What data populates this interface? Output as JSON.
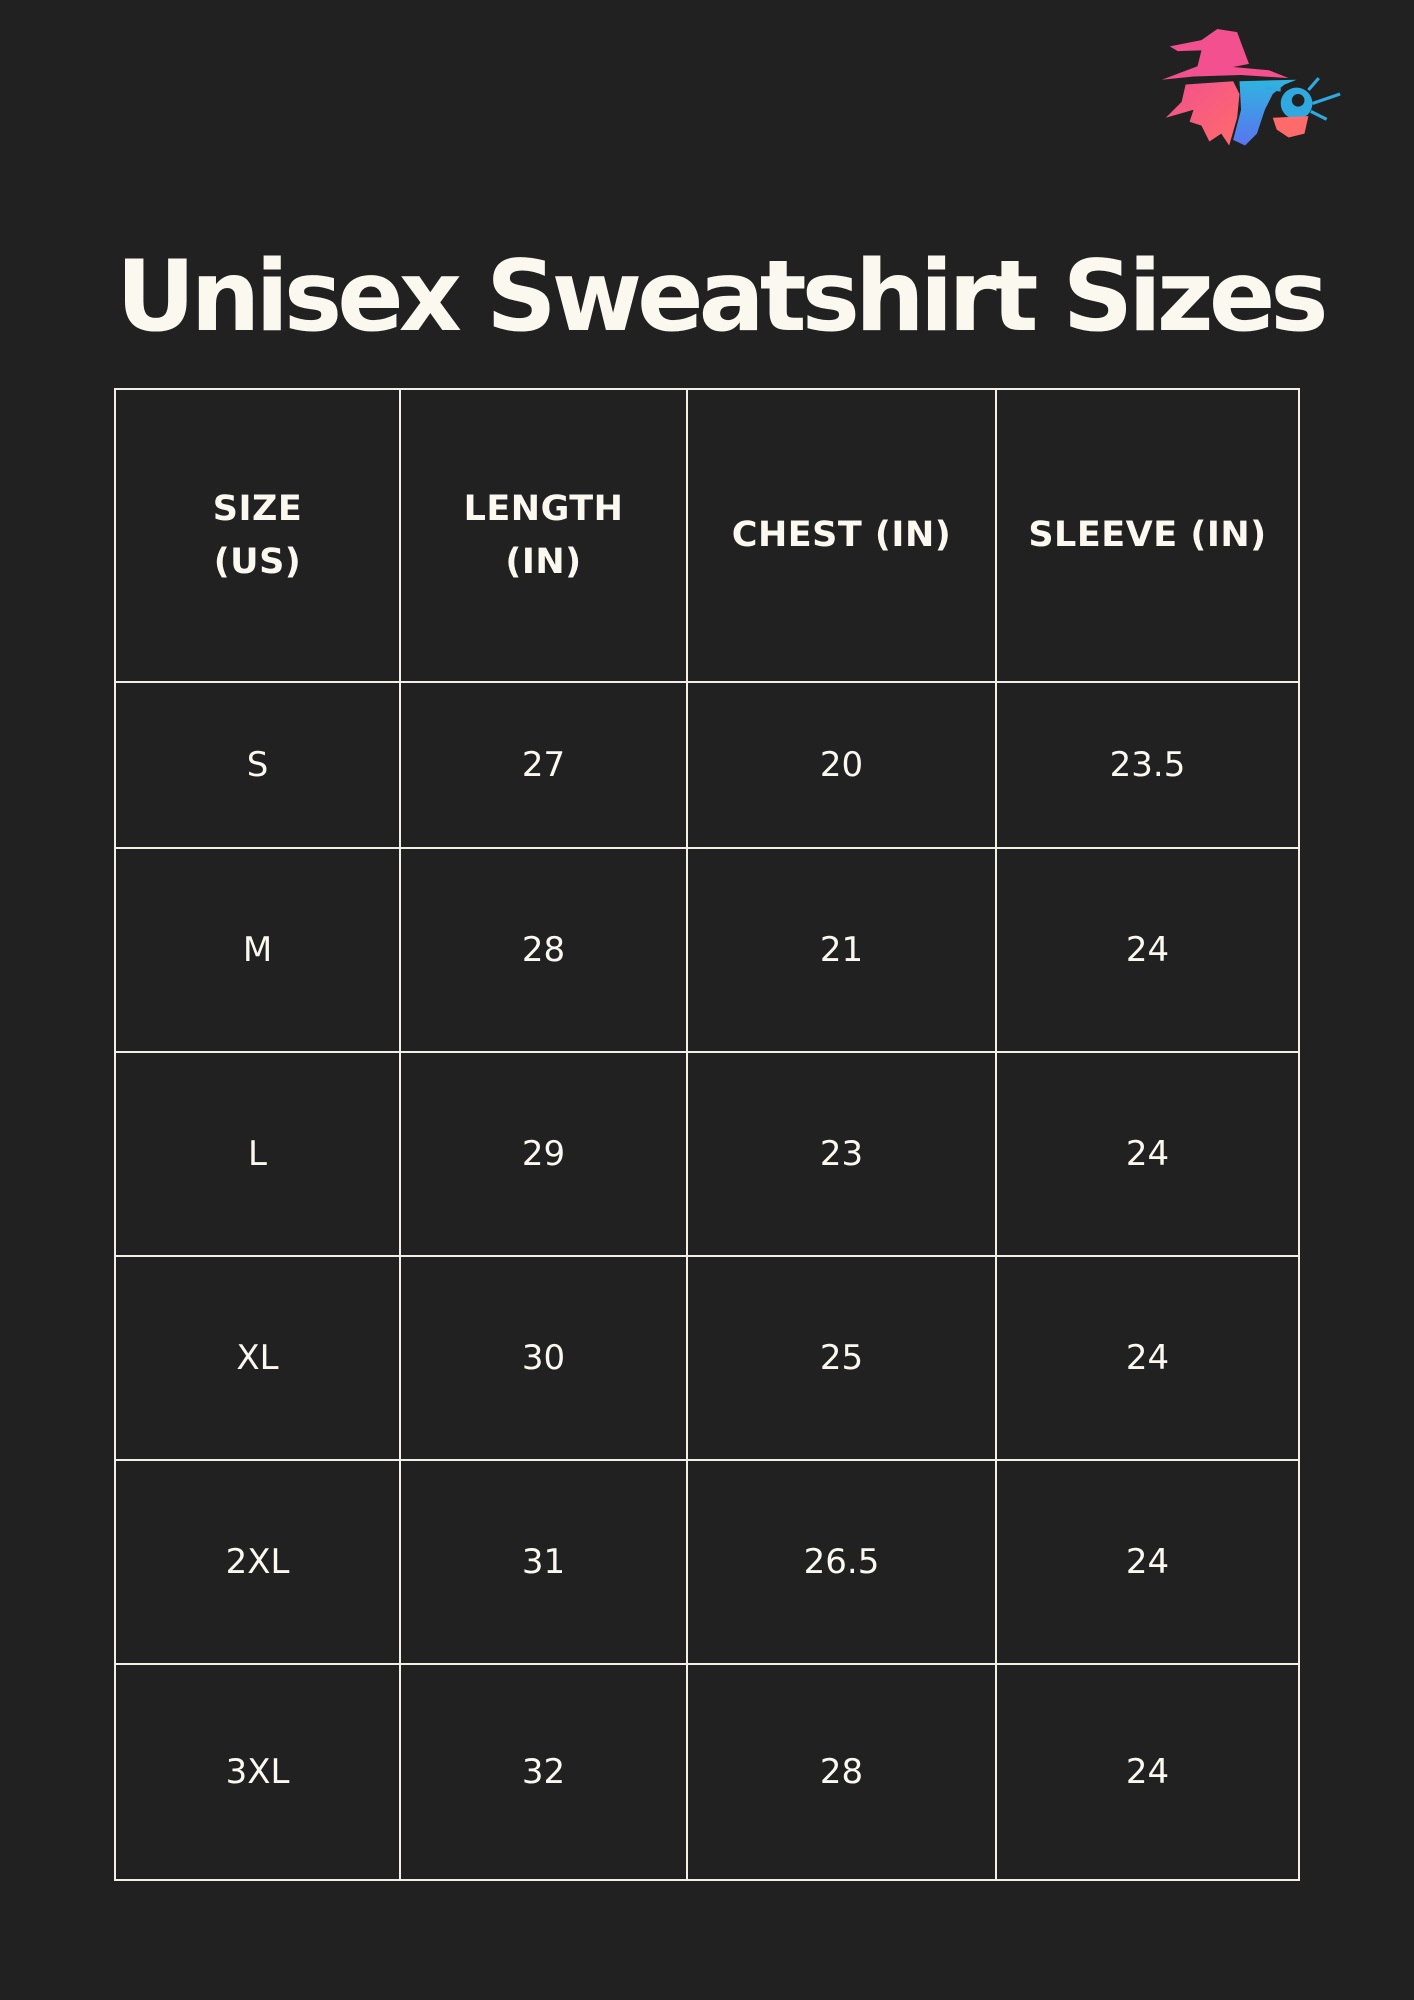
{
  "logo": {
    "name": "wizard-logo",
    "colors": [
      "#f2508f",
      "#ff6b6b",
      "#2fa9e0",
      "#5a7cf0"
    ]
  },
  "title": "Unisex Sweatshirt Sizes",
  "table": {
    "headers": [
      [
        "SIZE",
        "(US)"
      ],
      [
        "LENGTH",
        "(IN)"
      ],
      [
        "CHEST (IN)"
      ],
      [
        "SLEEVE (IN)"
      ]
    ],
    "rows": [
      [
        "S",
        "27",
        "20",
        "23.5"
      ],
      [
        "M",
        "28",
        "21",
        "24"
      ],
      [
        "L",
        "29",
        "23",
        "24"
      ],
      [
        "XL",
        "30",
        "25",
        "24"
      ],
      [
        "2XL",
        "31",
        "26.5",
        "24"
      ],
      [
        "3XL",
        "32",
        "28",
        "24"
      ]
    ]
  }
}
